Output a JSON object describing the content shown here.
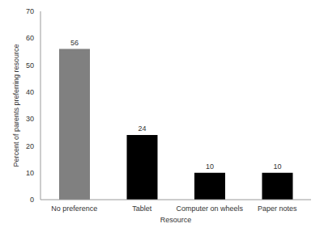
{
  "chart_data": {
    "type": "bar",
    "categories": [
      "No preference",
      "Tablet",
      "Computer on wheels",
      "Paper notes"
    ],
    "values": [
      56,
      24,
      10,
      10
    ],
    "colors": [
      "#808080",
      "#000000",
      "#000000",
      "#000000"
    ],
    "x_label": "Resource",
    "y_label": "Percent of parents preferring resource",
    "ylim": [
      0,
      70
    ],
    "yticks": [
      0,
      10,
      20,
      30,
      40,
      50,
      60,
      70
    ],
    "grid": false,
    "data_labels": true
  }
}
